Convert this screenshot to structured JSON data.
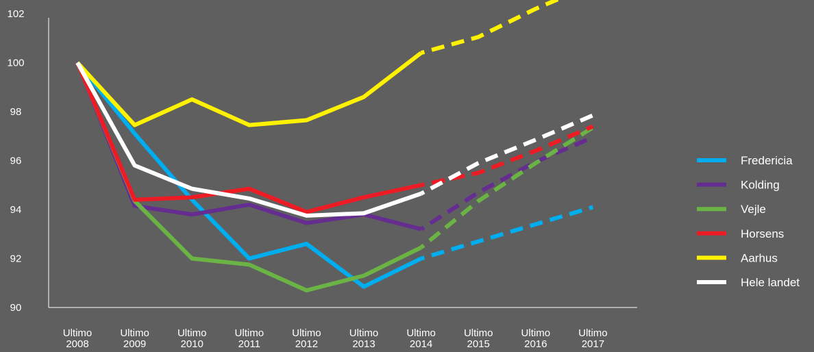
{
  "chart_data": {
    "type": "line",
    "title": "",
    "xlabel": "",
    "ylabel": "",
    "ylim": [
      90,
      102
    ],
    "yticks": [
      90,
      92,
      94,
      96,
      98,
      100,
      102
    ],
    "categories": [
      [
        "Ultimo",
        "2008"
      ],
      [
        "Ultimo",
        "2009"
      ],
      [
        "Ultimo",
        "2010"
      ],
      [
        "Ultimo",
        "2011"
      ],
      [
        "Ultimo",
        "2012"
      ],
      [
        "Ultimo",
        "2013"
      ],
      [
        "Ultimo",
        "2014"
      ],
      [
        "Ultimo",
        "2015"
      ],
      [
        "Ultimo",
        "2016"
      ],
      [
        "Ultimo",
        "2017"
      ]
    ],
    "actual_through": "Ultimo 2014",
    "projected_from": "Ultimo 2014",
    "grid": false,
    "legend_position": "right",
    "series": [
      {
        "name": "Fredericia",
        "color": "#00aeef",
        "values": [
          100,
          97.1,
          94.4,
          92.0,
          92.6,
          90.85,
          92.0,
          92.7,
          93.4,
          94.1
        ]
      },
      {
        "name": "Kolding",
        "color": "#662d91",
        "values": [
          100,
          94.15,
          93.8,
          94.2,
          93.45,
          93.8,
          93.2,
          94.7,
          95.95,
          96.95
        ]
      },
      {
        "name": "Vejle",
        "color": "#6ab344",
        "values": [
          100,
          94.35,
          92.0,
          91.75,
          90.7,
          91.3,
          92.45,
          94.35,
          95.9,
          97.35
        ]
      },
      {
        "name": "Horsens",
        "color": "#ed1c24",
        "values": [
          100,
          94.4,
          94.5,
          94.85,
          93.9,
          94.5,
          95.0,
          95.5,
          96.4,
          97.4
        ]
      },
      {
        "name": "Aarhus",
        "color": "#fff200",
        "values": [
          100,
          97.45,
          98.5,
          97.45,
          97.65,
          98.6,
          100.4,
          101.05,
          102.2,
          103.2
        ]
      },
      {
        "name": "Hele landet",
        "color": "#ffffff",
        "values": [
          100,
          95.8,
          94.85,
          94.45,
          93.75,
          93.85,
          94.65,
          95.9,
          96.85,
          97.85
        ]
      }
    ]
  }
}
